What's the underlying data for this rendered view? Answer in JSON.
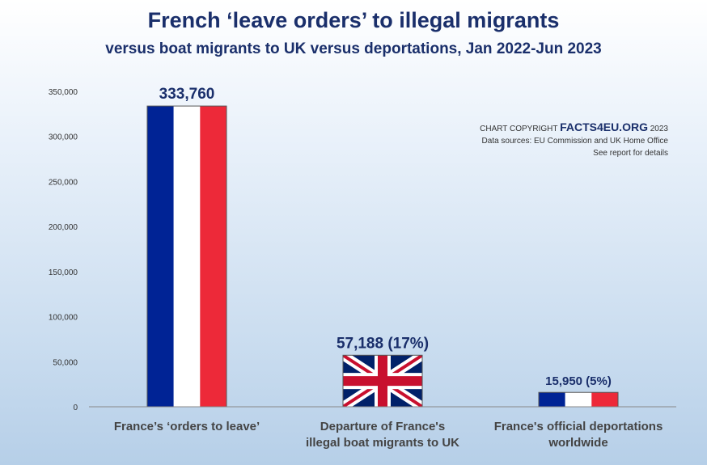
{
  "header": {
    "title": "French ‘leave orders’ to illegal migrants",
    "subtitle": "versus boat migrants to UK versus deportations, Jan 2022-Jun 2023"
  },
  "copyright": {
    "prefix": "CHART COPYRIGHT",
    "brand": "FACTS4EU.ORG",
    "year": "2023",
    "sources": "Data sources: EU Commission and UK Home Office",
    "note": "See report for details"
  },
  "chart_data": {
    "type": "bar",
    "ylim": [
      0,
      350000
    ],
    "yticks": [
      "0",
      "50,000",
      "100,000",
      "150,000",
      "200,000",
      "250,000",
      "300,000",
      "350,000"
    ],
    "categories": [
      [
        "France’s ‘orders to leave’"
      ],
      [
        "Departure of France's",
        "illegal boat migrants to UK"
      ],
      [
        "France's official deportations",
        "worldwide"
      ]
    ],
    "values": [
      333760,
      57188,
      15950
    ],
    "data_labels": [
      "333,760",
      "57,188 (17%)",
      "15,950 (5%)"
    ],
    "bar_styles": [
      "france-flag",
      "union-jack",
      "france-flag"
    ],
    "colors": {
      "blue": "#002395",
      "white": "#ffffff",
      "red": "#ed2939",
      "uk_blue": "#012169",
      "uk_red": "#c8102e"
    },
    "grid": false
  }
}
